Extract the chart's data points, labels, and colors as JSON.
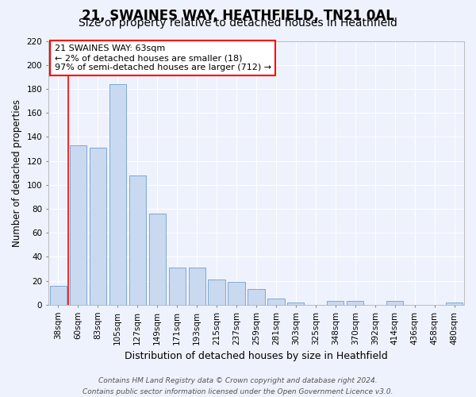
{
  "title": "21, SWAINES WAY, HEATHFIELD, TN21 0AL",
  "subtitle": "Size of property relative to detached houses in Heathfield",
  "xlabel": "Distribution of detached houses by size in Heathfield",
  "ylabel": "Number of detached properties",
  "categories": [
    "38sqm",
    "60sqm",
    "83sqm",
    "105sqm",
    "127sqm",
    "149sqm",
    "171sqm",
    "193sqm",
    "215sqm",
    "237sqm",
    "259sqm",
    "281sqm",
    "303sqm",
    "325sqm",
    "348sqm",
    "370sqm",
    "392sqm",
    "414sqm",
    "436sqm",
    "458sqm",
    "480sqm"
  ],
  "values": [
    16,
    133,
    131,
    184,
    108,
    76,
    31,
    31,
    21,
    19,
    13,
    5,
    2,
    0,
    3,
    3,
    0,
    3,
    0,
    0,
    2
  ],
  "bar_color": "#c9d9f0",
  "bar_edge_color": "#7fa8d0",
  "annotation_text_line1": "21 SWAINES WAY: 63sqm",
  "annotation_text_line2": "← 2% of detached houses are smaller (18)",
  "annotation_text_line3": "97% of semi-detached houses are larger (712) →",
  "annotation_box_color": "white",
  "annotation_box_edge_color": "red",
  "vline_color": "red",
  "ylim": [
    0,
    220
  ],
  "yticks": [
    0,
    20,
    40,
    60,
    80,
    100,
    120,
    140,
    160,
    180,
    200,
    220
  ],
  "background_color": "#eef2fc",
  "grid_color": "#ffffff",
  "footer_line1": "Contains HM Land Registry data © Crown copyright and database right 2024.",
  "footer_line2": "Contains public sector information licensed under the Open Government Licence v3.0.",
  "title_fontsize": 12,
  "subtitle_fontsize": 10,
  "xlabel_fontsize": 9,
  "ylabel_fontsize": 8.5,
  "tick_fontsize": 7.5,
  "annotation_fontsize": 8,
  "footer_fontsize": 6.5
}
